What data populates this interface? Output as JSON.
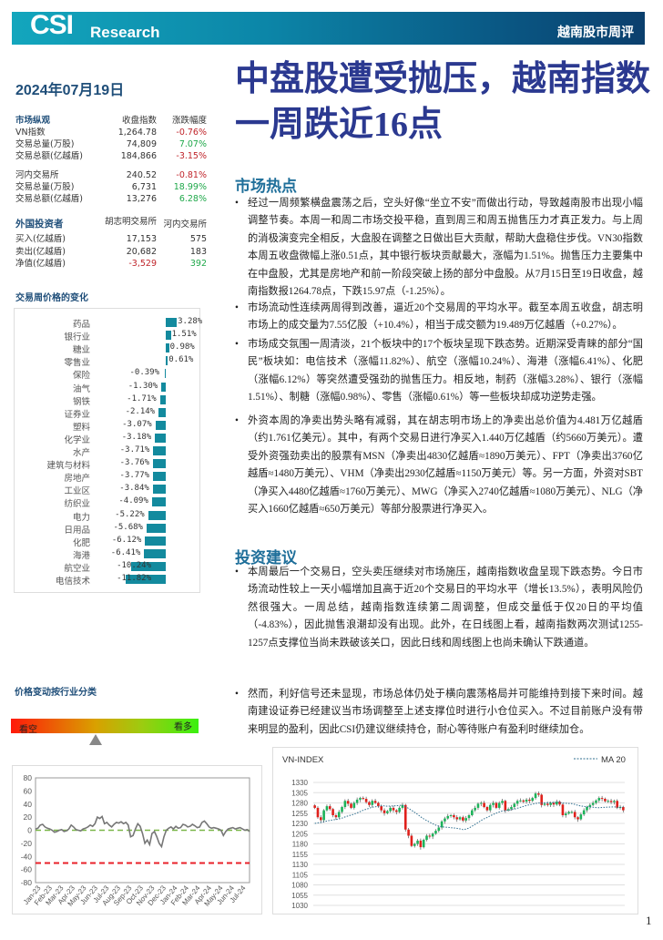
{
  "header": {
    "logo_main": "CSI",
    "logo_sub": "Research",
    "report_type": "越南股市周评"
  },
  "date": "2024年07月19日",
  "title": "中盘股遭受抛压，越南指数一周跌近16点",
  "market_overview": {
    "heading": "市场纵观",
    "col1": "收盘指数",
    "col2": "涨跌幅度",
    "rows": [
      {
        "label": "VN指数",
        "value": "1,264.78",
        "change": "-0.76%",
        "dir": "down"
      },
      {
        "label": "交易总量(万股)",
        "value": "74,809",
        "change": "7.07%",
        "dir": "up"
      },
      {
        "label": "交易总额(亿越盾)",
        "value": "184,866",
        "change": "-3.15%",
        "dir": "down"
      },
      {
        "label": "河内交易所",
        "value": "240.52",
        "change": "-0.81%",
        "dir": "down"
      },
      {
        "label": "交易总量(万股)",
        "value": "6,731",
        "change": "18.99%",
        "dir": "up"
      },
      {
        "label": "交易总额(亿越盾)",
        "value": "13,276",
        "change": "6.28%",
        "dir": "up"
      }
    ]
  },
  "foreign": {
    "heading": "外国投资者",
    "col1": "胡志明交易所",
    "col2": "河内交易所",
    "rows": [
      {
        "label": "买入(亿越盾)",
        "hose": "17,153",
        "hnx": "575"
      },
      {
        "label": "卖出(亿越盾)",
        "hose": "20,682",
        "hnx": "183"
      },
      {
        "label": "净值(亿越盾)",
        "hose": "-3,529",
        "hnx": "392"
      }
    ]
  },
  "sector_heading": "交易周价格的变化",
  "gauge": {
    "heading": "价格变动按行业分类",
    "left_label": "看空",
    "right_label": "看多",
    "position_pct": 45
  },
  "sections": [
    {
      "heading": "市场热点",
      "paragraphs": [
        "经过一周频繁横盘震荡之后，空头好像“坐立不安”而做出行动，导致越南股市出现小幅调整节奏。本周一和周二市场交投平稳，直到周三和周五抛售压力才真正发力。与上周的消极演变完全相反，大盘股在调整之日做出巨大贡献，帮助大盘稳住步伐。VN30指数本周五收盘微幅上涨0.51点，其中银行板块贡献最大，涨幅为1.51%。抛售压力主要集中在中盘股，尤其是房地产和前一阶段突破上扬的部分中盘股。从7月15日至19日收盘，越南指数报1264.78点，下跌15.97点（-1.25%）。",
        "市场流动性连续两周得到改善，逼近20个交易周的平均水平。截至本周五收盘，胡志明市场上的成交量为7.55亿股（+10.4%），相当于成交额为19.489万亿越盾（+0.27%）。",
        "市场成交氛围一周清淡，21个板块中的17个板块呈现下跌态势。近期深受青睐的部分“国民”板块如：电信技术（涨幅11.82%）、航空（涨幅10.24%）、海港（涨幅6.41%）、化肥（涨幅6.12%）等突然遭受强劲的抛售压力。相反地，制药（涨幅3.28%）、银行（涨幅1.51%）、制糖（涨幅0.98%）、零售（涨幅0.61%）等一些板块却成功逆势走强。",
        "外资本周的净卖出势头略有减弱，其在胡志明市场上的净卖出总价值为4.481万亿越盾（约1.761亿美元）。其中，有两个交易日进行净买入1.440万亿越盾（约5660万美元）。遭受外资强劲卖出的股票有MSN（净卖出4830亿越盾≈1890万美元）、FPT（净卖出3760亿越盾≈1480万美元）、VHM（净卖出2930亿越盾≈1150万美元）等。另一方面，外资对SBT（净买入4480亿越盾≈1760万美元）、MWG（净买入2740亿越盾≈1080万美元）、NLG（净买入1660亿越盾≈650万美元）等部分股票进行净买入。"
      ]
    },
    {
      "heading": "投资建议",
      "paragraphs": [
        "本周最后一个交易日，空头卖压继续对市场施压，越南指数收盘呈现下跌态势。今日市场流动性较上一天小幅增加且高于近20个交易日的平均水平（增长13.5%），表明风险仍然很强大。一周总结，越南指数连续第二周调整，但成交量低于仅20日的平均值（-4.83%），因此抛售浪潮却没有出现。此外，在日线图上看，越南指数两次测试1255-1257点支撑位当尚未跌破该关口，因此日线和周线图上也尚未确认下跌通道。",
        "然而，利好信号还未显现，市场总体仍处于横向震荡格局并可能维持到接下来时间。越南建设证券已经建议当市场调整至上述支撑位时进行小仓位买入。不过目前账户没有带来明显的盈利，因此CSI仍建议继续持仓，耐心等待账户有盈利时继续加仓。"
      ]
    }
  ],
  "page_number": "1",
  "colors": {
    "banner": "#0c86a8",
    "title": "#2b3990",
    "heading": "#1f6f9a",
    "bar": "#138a9e",
    "up": "#1db35a",
    "down": "#e0201b",
    "ma": "#2f6f8f"
  },
  "chart_data": [
    {
      "type": "bar",
      "orientation": "horizontal",
      "unit": "%",
      "categories": [
        "药品",
        "银行业",
        "糖业",
        "零售业",
        "保险",
        "油气",
        "钢铁",
        "证券业",
        "塑料",
        "化学业",
        "水产",
        "建筑与材料",
        "房地产",
        "工业区",
        "纺织业",
        "电力",
        "日用品",
        "化肥",
        "海港",
        "航空业",
        "电信技术"
      ],
      "values": [
        3.28,
        1.51,
        0.98,
        0.61,
        -0.39,
        -1.3,
        -1.71,
        -2.14,
        -3.07,
        -3.18,
        -3.71,
        -3.76,
        -3.77,
        -3.84,
        -4.09,
        -5.22,
        -5.68,
        -6.12,
        -6.41,
        -10.24,
        -11.82
      ],
      "labels": [
        "3.28%",
        "1.51%",
        "0.98%",
        "0.61%",
        "-0.39%",
        "-1.30%",
        "-1.71%",
        "-2.14%",
        "-3.07%",
        "-3.18%",
        "-3.71%",
        "-3.76%",
        "-3.77%",
        "-3.84%",
        "-4.09%",
        "-5.22%",
        "-5.68%",
        "-6.12%",
        "-6.41%",
        "-10.24%",
        "-11.82%"
      ]
    },
    {
      "type": "line",
      "ylim": [
        -80,
        80
      ],
      "yticks": [
        80,
        60,
        40,
        20,
        0,
        -20,
        -40,
        -60,
        -80
      ],
      "xticks": [
        "Jan-23",
        "Feb-23",
        "Mar-23",
        "Apr-23",
        "May-23",
        "Jun-23",
        "Jul-23",
        "Aug-23",
        "Sep-23",
        "Oct-23",
        "Nov-23",
        "Dec-23",
        "Jan-24",
        "Feb-24",
        "Mar-24",
        "Apr-24",
        "May-24",
        "Jun-24",
        "Jul-24"
      ],
      "reference_lines": [
        {
          "y": 0,
          "color": "#7ab648"
        },
        {
          "y": -50,
          "color": "#e8202a"
        }
      ],
      "values": [
        2,
        3,
        8,
        9,
        5,
        3,
        2,
        0,
        -3,
        -2,
        0,
        1,
        -2,
        -1,
        2,
        8,
        5,
        1,
        0,
        -1,
        2,
        3,
        5,
        8,
        6,
        10,
        20,
        18,
        21,
        10,
        12,
        8,
        5,
        9,
        12,
        11,
        13,
        10,
        12,
        8,
        -10,
        -8,
        2,
        10,
        6,
        -5,
        -20,
        -15,
        -22,
        -5,
        -2,
        -10,
        -20,
        -25,
        -10,
        0,
        3,
        5,
        2,
        6,
        3,
        4,
        9,
        8,
        5,
        6,
        9,
        7,
        4,
        5,
        12,
        14,
        10,
        5,
        3,
        4,
        3,
        2,
        0,
        -8,
        -2,
        2,
        3,
        4,
        2,
        3,
        4,
        2,
        0,
        1,
        -2
      ]
    },
    {
      "type": "candlestick",
      "title": "VN-INDEX",
      "legend": "MA 20",
      "legend_position": "top-right",
      "ylim": [
        1030,
        1330
      ],
      "yticks": [
        1330,
        1305,
        1280,
        1255,
        1230,
        1205,
        1180,
        1155,
        1130,
        1105,
        1080,
        1055,
        1030
      ],
      "close": [
        1268,
        1245,
        1238,
        1262,
        1272,
        1265,
        1250,
        1245,
        1258,
        1270,
        1285,
        1278,
        1268,
        1280,
        1288,
        1292,
        1290,
        1282,
        1275,
        1285,
        1280,
        1272,
        1262,
        1255,
        1260,
        1268,
        1262,
        1258,
        1268,
        1275,
        1215,
        1200,
        1175,
        1180,
        1188,
        1172,
        1190,
        1200,
        1198,
        1205,
        1212,
        1220,
        1235,
        1242,
        1248,
        1250,
        1245,
        1240,
        1245,
        1237,
        1243,
        1250,
        1262,
        1268,
        1278,
        1280,
        1270,
        1262,
        1275,
        1280,
        1268,
        1280,
        1285,
        1262,
        1265,
        1270,
        1278,
        1285,
        1286,
        1283,
        1288,
        1285,
        1292,
        1303,
        1300,
        1275,
        1278,
        1275,
        1280,
        1276,
        1283,
        1276,
        1250,
        1254,
        1258,
        1258,
        1245,
        1240,
        1252,
        1262,
        1270,
        1275,
        1280,
        1286,
        1292,
        1290,
        1284,
        1285,
        1282,
        1285,
        1268,
        1270,
        1262
      ]
    }
  ]
}
